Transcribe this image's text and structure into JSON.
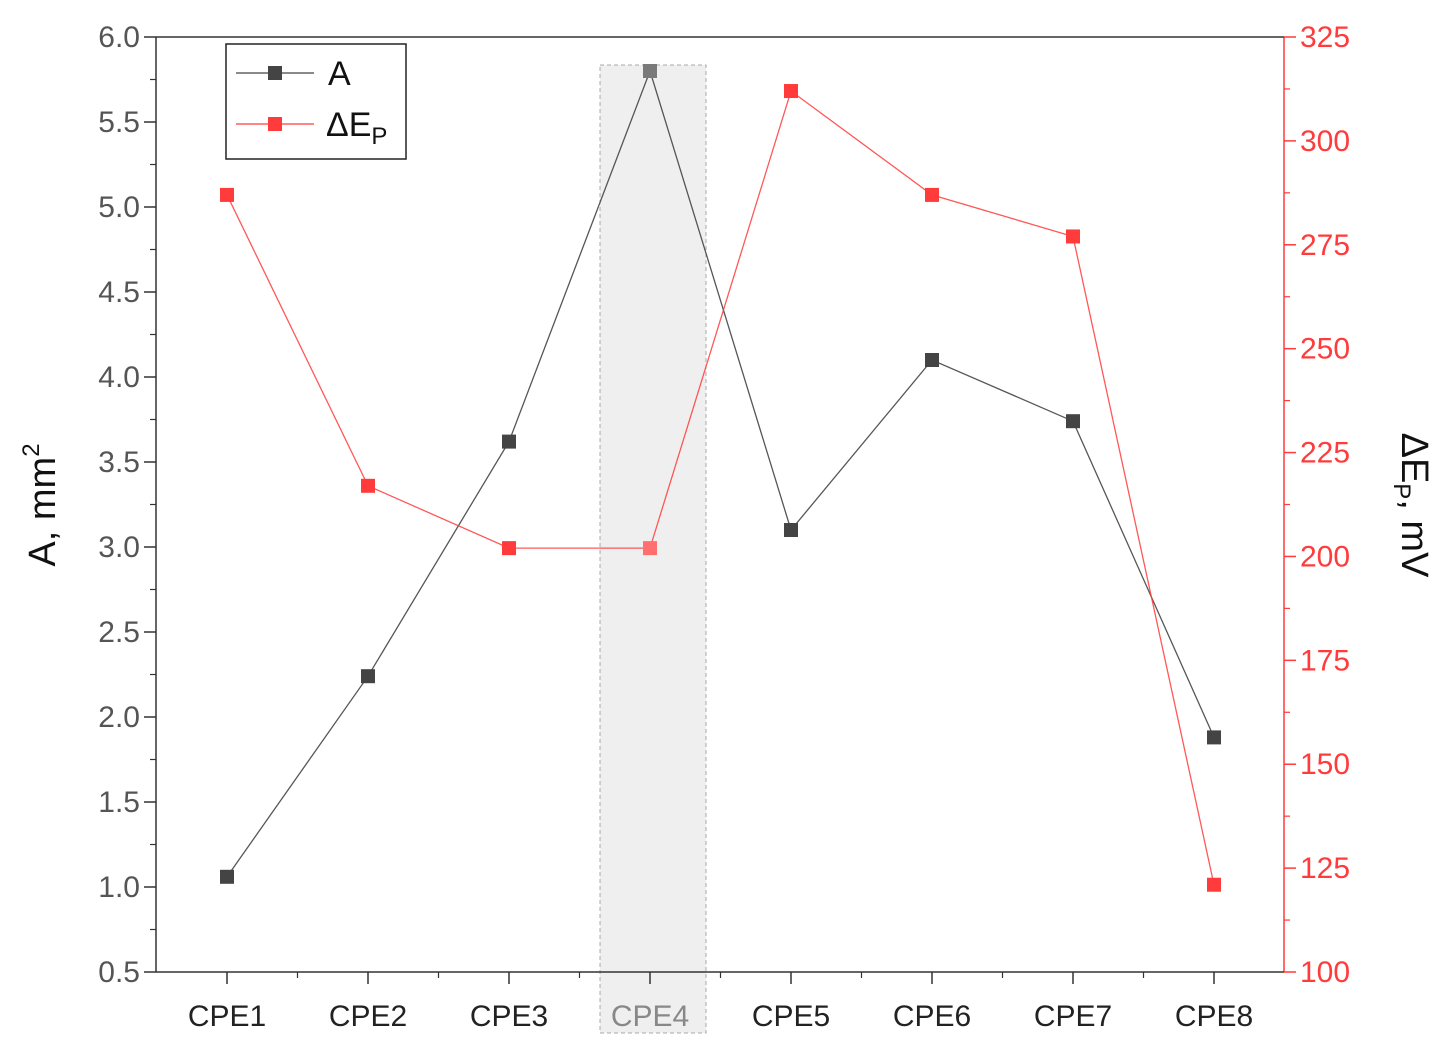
{
  "chart_data": {
    "type": "line",
    "categories": [
      "CPE1",
      "CPE2",
      "CPE3",
      "CPE4",
      "CPE5",
      "CPE6",
      "CPE7",
      "CPE8"
    ],
    "highlight_category": "CPE4",
    "series": [
      {
        "name": "A",
        "axis": "left",
        "color": "#444444",
        "values": [
          1.06,
          2.24,
          3.62,
          5.8,
          3.1,
          4.1,
          3.74,
          1.88
        ]
      },
      {
        "name": "ΔE",
        "name_subscript": "P",
        "axis": "right",
        "color": "#ff3b3b",
        "values": [
          287,
          217,
          202,
          202,
          312,
          287,
          277,
          121
        ]
      }
    ],
    "y_left": {
      "label": "A, mm",
      "label_superscript": "2",
      "lim": [
        0.5,
        6.0
      ],
      "ticks": [
        "0.5",
        "1.0",
        "1.5",
        "2.0",
        "2.5",
        "3.0",
        "3.5",
        "4.0",
        "4.5",
        "5.0",
        "5.5",
        "6.0"
      ]
    },
    "y_right": {
      "label": "ΔE",
      "label_subscript": "P",
      "label_suffix": ", mV",
      "lim": [
        100,
        325
      ],
      "ticks": [
        "100",
        "125",
        "150",
        "175",
        "200",
        "225",
        "250",
        "275",
        "300",
        "325"
      ]
    },
    "legend_position": "top-left",
    "grid": false
  }
}
